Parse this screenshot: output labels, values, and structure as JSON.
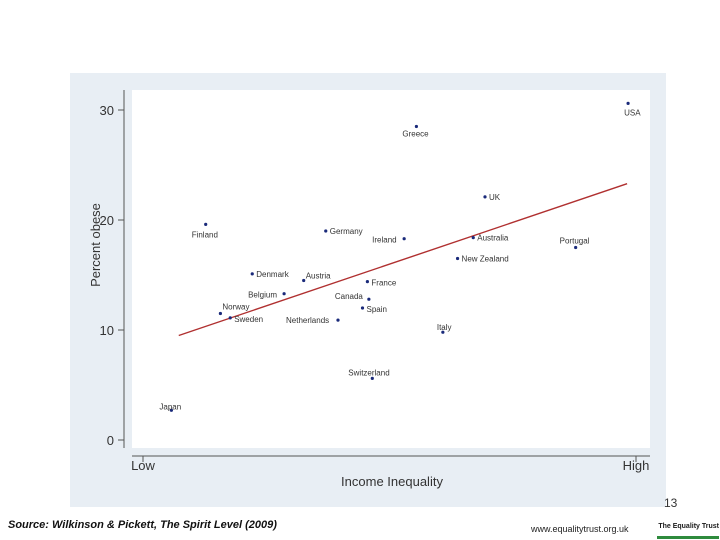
{
  "chart_data": {
    "type": "scatter",
    "title": "",
    "xlabel": "Income Inequality",
    "ylabel": "Percent obese",
    "x_tick_labels": [
      "Low",
      "High"
    ],
    "xlim": [
      0,
      100
    ],
    "ylim": [
      0,
      30
    ],
    "yticks": [
      0,
      10,
      20,
      30
    ],
    "point_color": "#1a2a7a",
    "trend_color": "#b03030",
    "points": [
      {
        "label": "USA",
        "x": 99.2,
        "y": 30.6
      },
      {
        "label": "Greece",
        "x": 56.0,
        "y": 28.5
      },
      {
        "label": "UK",
        "x": 70.0,
        "y": 22.1
      },
      {
        "label": "Finland",
        "x": 13.0,
        "y": 19.6
      },
      {
        "label": "Germany",
        "x": 37.5,
        "y": 19.0
      },
      {
        "label": "Ireland",
        "x": 53.5,
        "y": 18.3
      },
      {
        "label": "Australia",
        "x": 67.6,
        "y": 18.4
      },
      {
        "label": "Portugal",
        "x": 88.5,
        "y": 17.5
      },
      {
        "label": "New Zealand",
        "x": 64.4,
        "y": 16.5
      },
      {
        "label": "Denmark",
        "x": 22.5,
        "y": 15.1
      },
      {
        "label": "Austria",
        "x": 33.0,
        "y": 14.5
      },
      {
        "label": "France",
        "x": 46.0,
        "y": 14.4
      },
      {
        "label": "Belgium",
        "x": 29.0,
        "y": 13.3
      },
      {
        "label": "Canada",
        "x": 46.3,
        "y": 12.8
      },
      {
        "label": "Spain",
        "x": 45.0,
        "y": 12.0
      },
      {
        "label": "Norway",
        "x": 16.0,
        "y": 11.5
      },
      {
        "label": "Sweden",
        "x": 18.0,
        "y": 11.1
      },
      {
        "label": "Netherlands",
        "x": 40.0,
        "y": 10.9
      },
      {
        "label": "Italy",
        "x": 61.4,
        "y": 9.8
      },
      {
        "label": "Switzerland",
        "x": 47.0,
        "y": 5.6
      },
      {
        "label": "Japan",
        "x": 6.0,
        "y": 2.7
      }
    ],
    "trend_line": {
      "x": [
        7.5,
        99.0
      ],
      "y": [
        9.5,
        23.3
      ]
    }
  },
  "footer": {
    "source": "Source: Wilkinson & Pickett, The Spirit Level (2009)",
    "website": "www.equalitytrust.org.uk",
    "slide_number": "13",
    "logo_text": "The Equality Trust"
  }
}
